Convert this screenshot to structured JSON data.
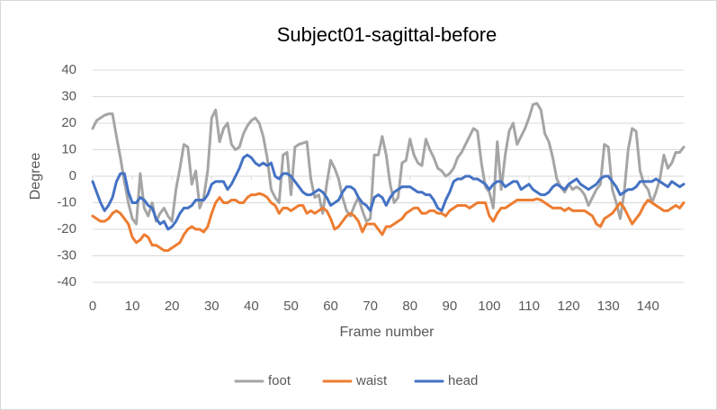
{
  "chart_data": {
    "type": "line",
    "title": "Subject01-sagittal-before",
    "x_label": "Frame number",
    "y_label": "Degree",
    "x": [
      0,
      1,
      2,
      3,
      4,
      5,
      6,
      7,
      8,
      9,
      10,
      11,
      12,
      13,
      14,
      15,
      16,
      17,
      18,
      19,
      20,
      21,
      22,
      23,
      24,
      25,
      26,
      27,
      28,
      29,
      30,
      31,
      32,
      33,
      34,
      35,
      36,
      37,
      38,
      39,
      40,
      41,
      42,
      43,
      44,
      45,
      46,
      47,
      48,
      49,
      50,
      51,
      52,
      53,
      54,
      55,
      56,
      57,
      58,
      59,
      60,
      61,
      62,
      63,
      64,
      65,
      66,
      67,
      68,
      69,
      70,
      71,
      72,
      73,
      74,
      75,
      76,
      77,
      78,
      79,
      80,
      81,
      82,
      83,
      84,
      85,
      86,
      87,
      88,
      89,
      90,
      91,
      92,
      93,
      94,
      95,
      96,
      97,
      98,
      99,
      100,
      101,
      102,
      103,
      104,
      105,
      106,
      107,
      108,
      109,
      110,
      111,
      112,
      113,
      114,
      115,
      116,
      117,
      118,
      119,
      120,
      121,
      122,
      123,
      124,
      125,
      126,
      127,
      128,
      129,
      130,
      131,
      132,
      133,
      134,
      135,
      136,
      137,
      138,
      139,
      140,
      141,
      142,
      143,
      144,
      145,
      146,
      147,
      148,
      149
    ],
    "xlim": [
      0,
      149
    ],
    "xticks": [
      0,
      10,
      20,
      30,
      40,
      50,
      60,
      70,
      80,
      90,
      100,
      110,
      120,
      130,
      140
    ],
    "ylim": [
      -40,
      40
    ],
    "yticks": [
      -40,
      -30,
      -20,
      -10,
      0,
      10,
      20,
      30,
      40
    ],
    "grid": true,
    "legend": "bottom",
    "series": [
      {
        "name": "foot",
        "color": "#a5a5a5",
        "values": [
          18,
          21,
          22,
          23,
          23.5,
          23.5,
          15,
          7,
          -2,
          -10,
          -16,
          -18,
          1,
          -12,
          -15,
          -10,
          -17,
          -14,
          -12,
          -15,
          -17,
          -5,
          3,
          12,
          11,
          -3,
          2,
          -12,
          -8,
          2,
          22,
          25,
          13,
          18,
          20,
          12,
          10,
          11,
          16,
          19,
          21,
          22,
          20,
          15,
          7,
          -5,
          -8,
          -10,
          8,
          9,
          -7,
          11,
          12,
          12.5,
          13,
          -1,
          -8,
          -7,
          -14,
          -3,
          6,
          3,
          -1,
          -8,
          -13,
          -15,
          -11,
          -8,
          -13,
          -17,
          -16,
          8,
          8,
          15,
          8,
          -3,
          -10,
          -8,
          5,
          6,
          14,
          8,
          5,
          4,
          14,
          10,
          7,
          3,
          2,
          0,
          1,
          3,
          7,
          9,
          12,
          15,
          18,
          17,
          5,
          -4,
          -6,
          -12,
          13,
          -5,
          8,
          17,
          20,
          12,
          15,
          18,
          22,
          27,
          27.5,
          25,
          16,
          13,
          7,
          -1,
          -4,
          -6,
          -3,
          -5,
          -4,
          -5,
          -7,
          -11,
          -8,
          -5,
          -3,
          12,
          11,
          -5,
          -10,
          -16,
          -6,
          10,
          18,
          17,
          2,
          -3,
          -5,
          -10,
          -6,
          -1,
          8,
          3,
          5,
          9,
          9,
          11
        ]
      },
      {
        "name": "waist",
        "color": "#ed7d31",
        "values": [
          -15,
          -16,
          -17,
          -17,
          -16,
          -14,
          -13,
          -14,
          -16,
          -18,
          -23,
          -25,
          -24,
          -22,
          -23,
          -26,
          -26,
          -27,
          -28,
          -28,
          -27,
          -26,
          -25,
          -22,
          -20,
          -19,
          -20,
          -20,
          -21,
          -19,
          -14,
          -10,
          -8,
          -10,
          -10,
          -9,
          -9,
          -10,
          -10,
          -8,
          -7,
          -7,
          -6.5,
          -7,
          -8,
          -10,
          -11,
          -14,
          -12,
          -12,
          -13,
          -12,
          -11,
          -11,
          -14,
          -13,
          -14,
          -13,
          -12,
          -13,
          -16,
          -20,
          -19,
          -17,
          -15,
          -14,
          -15,
          -17,
          -21,
          -18,
          -18,
          -18,
          -20,
          -22,
          -19,
          -19,
          -18,
          -17,
          -16,
          -14,
          -13,
          -12,
          -12,
          -14,
          -14,
          -13,
          -13,
          -14,
          -14,
          -15,
          -13,
          -12,
          -11,
          -11,
          -11,
          -12,
          -11,
          -10,
          -10,
          -10,
          -15,
          -17,
          -14,
          -12,
          -12,
          -11,
          -10,
          -9,
          -9,
          -9,
          -9,
          -9,
          -8.5,
          -9,
          -10,
          -11,
          -12,
          -12,
          -12,
          -13,
          -12,
          -13,
          -13,
          -13,
          -13,
          -14,
          -15,
          -18,
          -19,
          -16,
          -15,
          -14,
          -12,
          -10,
          -12,
          -15,
          -18,
          -16,
          -14,
          -11,
          -9,
          -10,
          -11,
          -12,
          -13,
          -13,
          -12,
          -11,
          -12,
          -10
        ]
      },
      {
        "name": "head",
        "color": "#4472c4",
        "values": [
          -2,
          -6,
          -10,
          -13,
          -11,
          -8,
          -2,
          1,
          1,
          -6,
          -10,
          -10,
          -8,
          -9,
          -11,
          -12,
          -16,
          -18,
          -17,
          -20,
          -19,
          -17,
          -14,
          -12,
          -12,
          -11,
          -9,
          -9,
          -9,
          -7,
          -3,
          -2,
          -2,
          -2,
          -5,
          -3,
          0,
          3,
          7,
          8,
          7,
          5,
          4,
          5,
          4,
          5,
          0,
          -1,
          1,
          1,
          0,
          -2,
          -4,
          -6,
          -7,
          -7,
          -6,
          -5,
          -6,
          -8,
          -11,
          -10,
          -9,
          -6,
          -4,
          -4,
          -5,
          -8,
          -10,
          -11,
          -13,
          -8,
          -7,
          -8,
          -11,
          -8,
          -6,
          -5,
          -4,
          -4,
          -4,
          -5,
          -6,
          -6,
          -7,
          -7,
          -9,
          -12,
          -13,
          -9,
          -6,
          -2,
          -1,
          -1,
          0,
          0,
          -1,
          -1,
          -2,
          -3,
          -5,
          -3,
          -2,
          -2,
          -4,
          -3,
          -2,
          -2,
          -5,
          -4,
          -3,
          -5,
          -6,
          -7,
          -7,
          -6,
          -4,
          -3,
          -4,
          -5,
          -3,
          -2,
          -1,
          -3,
          -4,
          -5,
          -4,
          -3,
          -1,
          0,
          0,
          -2,
          -4,
          -7,
          -6,
          -5,
          -5,
          -4,
          -2,
          -2,
          -2,
          -2,
          -1,
          -2,
          -3,
          -4,
          -2,
          -3,
          -4,
          -3
        ]
      }
    ]
  }
}
